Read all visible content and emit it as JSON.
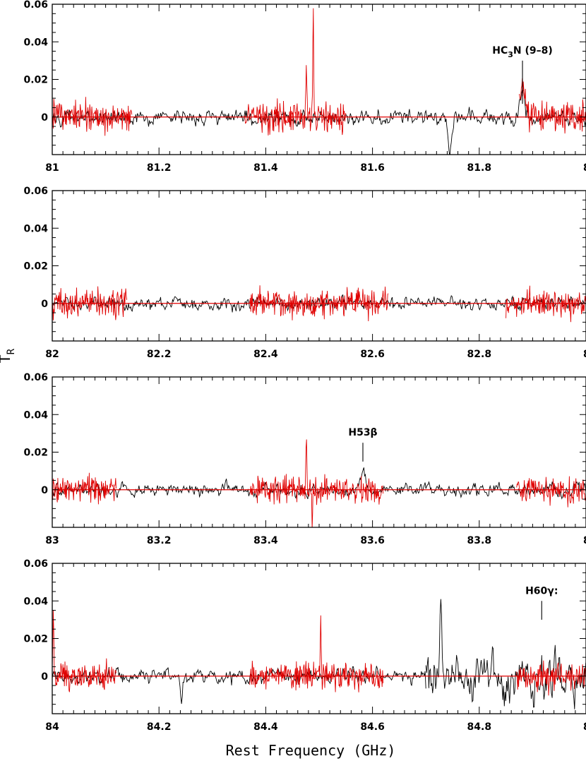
{
  "chart_data": {
    "type": "line",
    "xlabel": "Rest Frequency (GHz)",
    "ylabel_main": "T",
    "ylabel_sub": "R",
    "ylabel_sup": "*",
    "colors": {
      "black_series": "#000000",
      "red_series": "#e00000",
      "baseline": "#e00000",
      "axes": "#000000"
    },
    "panels": [
      {
        "xlim": [
          81.0,
          82.0
        ],
        "ylim": [
          -0.02,
          0.06
        ],
        "yticks": [
          0,
          0.02,
          0.04,
          0.06
        ],
        "ytick_labels": [
          "0",
          "0.02",
          "0.04",
          "0.06"
        ],
        "xtick_labels": [
          "81",
          "81.2",
          "81.4",
          "81.6",
          "81.8",
          "8"
        ],
        "annotations": [
          {
            "parts": [
              {
                "t": "HC"
              },
              {
                "t": "3",
                "sub": true
              },
              {
                "t": "N  (9–8)"
              }
            ],
            "freq": 81.881,
            "tip": 0.007,
            "top": 0.03
          }
        ],
        "black_segments": [
          [
            81.0,
            82.0
          ]
        ],
        "red_segments": [
          [
            81.0,
            81.15
          ],
          [
            81.36,
            81.55
          ],
          [
            81.875,
            82.0
          ]
        ],
        "noise_black": 0.004,
        "noise_red": 0.0055,
        "features": [
          {
            "series": "red",
            "freq": 81.489,
            "peak": 0.06,
            "width": 0.0008
          },
          {
            "series": "red",
            "freq": 81.476,
            "peak": 0.026,
            "width": 0.0008
          },
          {
            "series": "red",
            "freq": 81.881,
            "peak": 0.018,
            "width": 0.004
          },
          {
            "series": "black",
            "freq": 81.881,
            "peak": 0.012,
            "width": 0.004
          },
          {
            "series": "black",
            "freq": 81.745,
            "peak": -0.017,
            "width": 0.003
          }
        ]
      },
      {
        "xlim": [
          82.0,
          83.0
        ],
        "ylim": [
          -0.02,
          0.06
        ],
        "yticks": [
          0,
          0.02,
          0.04,
          0.06
        ],
        "ytick_labels": [
          "0",
          "0.02",
          "0.04",
          "0.06"
        ],
        "xtick_labels": [
          "82",
          "82.2",
          "82.4",
          "82.6",
          "82.8",
          "8"
        ],
        "annotations": [],
        "black_segments": [
          [
            82.0,
            83.0
          ]
        ],
        "red_segments": [
          [
            82.0,
            82.14
          ],
          [
            82.37,
            82.63
          ],
          [
            82.85,
            83.0
          ]
        ],
        "noise_black": 0.0035,
        "noise_red": 0.005,
        "features": []
      },
      {
        "xlim": [
          83.0,
          84.0
        ],
        "ylim": [
          -0.02,
          0.06
        ],
        "yticks": [
          0,
          0.02,
          0.04,
          0.06
        ],
        "ytick_labels": [
          "0",
          "0.02",
          "0.04",
          "0.06"
        ],
        "xtick_labels": [
          "83",
          "83.2",
          "83.4",
          "83.6",
          "83.8",
          "8"
        ],
        "annotations": [
          {
            "parts": [
              {
                "t": "H53β"
              }
            ],
            "freq": 83.582,
            "tip": 0.015,
            "top": 0.025
          }
        ],
        "black_segments": [
          [
            83.0,
            84.0
          ]
        ],
        "red_segments": [
          [
            83.0,
            83.12
          ],
          [
            83.37,
            83.62
          ],
          [
            83.87,
            84.0
          ]
        ],
        "noise_black": 0.0032,
        "noise_red": 0.005,
        "features": [
          {
            "series": "red",
            "freq": 83.476,
            "peak": 0.028,
            "width": 0.0008
          },
          {
            "series": "red",
            "freq": 83.487,
            "peak": -0.022,
            "width": 0.0008
          },
          {
            "series": "black",
            "freq": 83.582,
            "peak": 0.008,
            "width": 0.005
          }
        ]
      },
      {
        "xlim": [
          84.0,
          85.0
        ],
        "ylim": [
          -0.02,
          0.06
        ],
        "yticks": [
          0,
          0.02,
          0.04,
          0.06
        ],
        "ytick_labels": [
          "0",
          "0.02",
          "0.04",
          "0.06"
        ],
        "xtick_labels": [
          "84",
          "84.2",
          "84.4",
          "84.6",
          "84.8",
          "8"
        ],
        "annotations": [
          {
            "parts": [
              {
                "t": "H60γ:"
              }
            ],
            "freq": 84.917,
            "tip": 0.03,
            "top": 0.04
          }
        ],
        "black_segments": [
          [
            84.0,
            84.7
          ],
          [
            84.7,
            85.0
          ]
        ],
        "red_segments": [
          [
            84.0,
            84.12
          ],
          [
            84.37,
            84.62
          ],
          [
            84.87,
            85.0
          ]
        ],
        "noise_black": 0.0035,
        "noise_red": 0.005,
        "noisy_region": {
          "start": 84.7,
          "noise": 0.013
        },
        "features": [
          {
            "series": "red",
            "freq": 84.002,
            "peak": 0.033,
            "width": 0.0008
          },
          {
            "series": "red",
            "freq": 84.503,
            "peak": 0.03,
            "width": 0.0008
          },
          {
            "series": "black",
            "freq": 84.728,
            "peak": 0.032,
            "width": 0.002
          },
          {
            "series": "black",
            "freq": 84.242,
            "peak": -0.015,
            "width": 0.002
          }
        ]
      }
    ]
  }
}
